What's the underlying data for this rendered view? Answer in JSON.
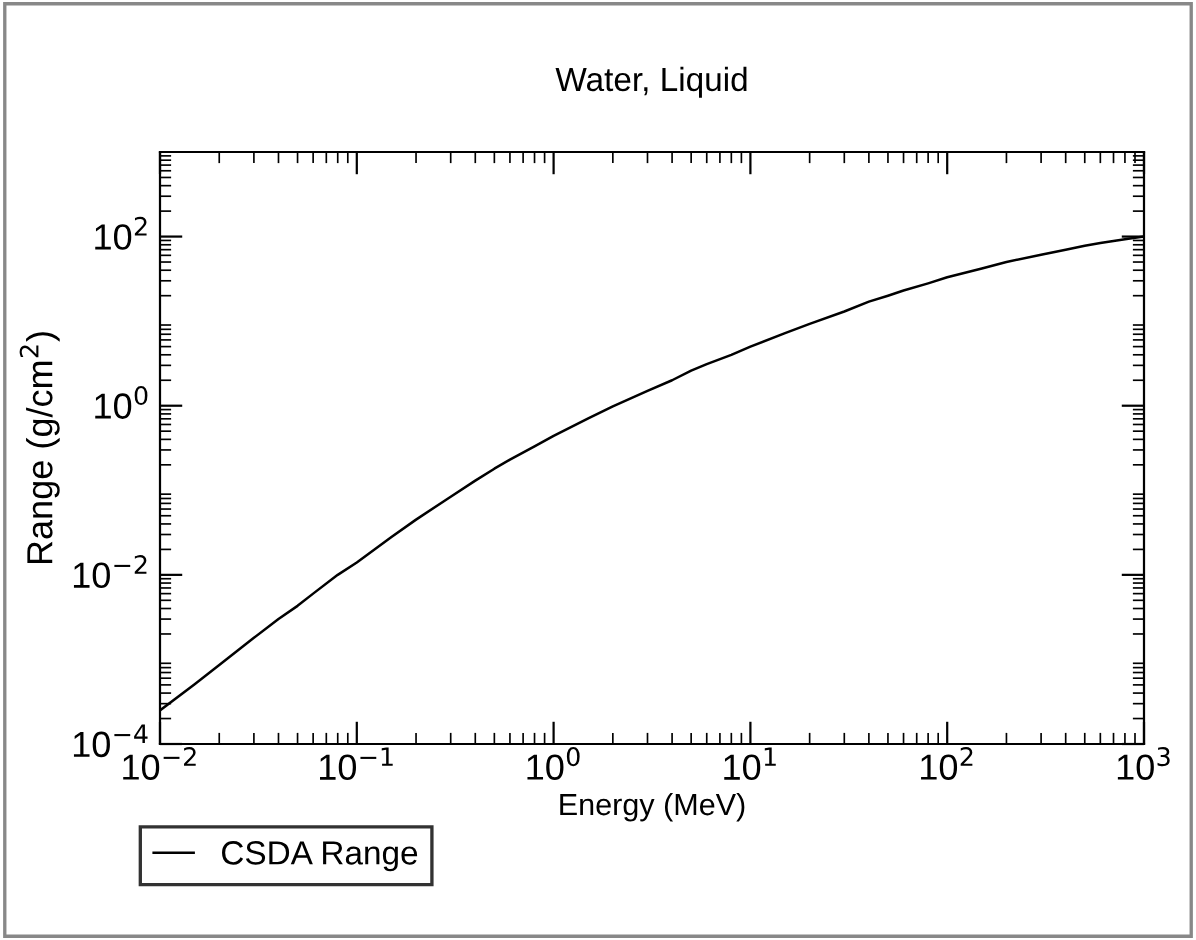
{
  "chart_data": {
    "type": "line",
    "title": "Water, Liquid",
    "xlabel": "Energy (MeV)",
    "ylabel": "Range (g/cm$^{2}$)",
    "x": [
      0.01,
      0.015,
      0.02,
      0.03,
      0.04,
      0.05,
      0.06,
      0.08,
      0.1,
      0.15,
      0.2,
      0.3,
      0.4,
      0.5,
      0.6,
      0.8,
      1,
      1.5,
      2,
      3,
      4,
      5,
      6,
      8,
      10,
      15,
      20,
      30,
      40,
      50,
      60,
      80,
      100,
      150,
      200,
      300,
      400,
      500,
      600,
      800,
      1000
    ],
    "series": [
      {
        "name": "CSDA Range",
        "color": "#000000",
        "values": [
          0.00025,
          0.00051,
          0.00086,
          0.0018,
          0.003,
          0.0043,
          0.006,
          0.01,
          0.014,
          0.028,
          0.045,
          0.084,
          0.13,
          0.18,
          0.23,
          0.33,
          0.44,
          0.71,
          0.98,
          1.5,
          2.0,
          2.6,
          3.1,
          4.0,
          5.0,
          7.2,
          9.3,
          13,
          17,
          20,
          23,
          28,
          33,
          42,
          50,
          61,
          70,
          78,
          84,
          93,
          100
        ]
      }
    ],
    "log": "xy",
    "xlim": [
      0.01,
      1000
    ],
    "ylim": [
      0.0001,
      1000
    ],
    "xticks": [
      {
        "value": 0.01,
        "label": "10$^{−2}$"
      },
      {
        "value": 0.1,
        "label": "10$^{−1}$"
      },
      {
        "value": 1,
        "label": "10$^{0}$"
      },
      {
        "value": 10,
        "label": "10$^{1}$"
      },
      {
        "value": 100,
        "label": "10$^{2}$"
      },
      {
        "value": 1000,
        "label": "10$^{3}$"
      }
    ],
    "yticks": [
      {
        "value": 0.0001,
        "label": "10$^{−4}$"
      },
      {
        "value": 0.01,
        "label": "10$^{−2}$"
      },
      {
        "value": 1,
        "label": "10$^{0}$"
      },
      {
        "value": 100,
        "label": "10$^{2}$"
      }
    ],
    "grid": false,
    "legend": "bottom left",
    "marker": "none",
    "line_style": "solid"
  }
}
